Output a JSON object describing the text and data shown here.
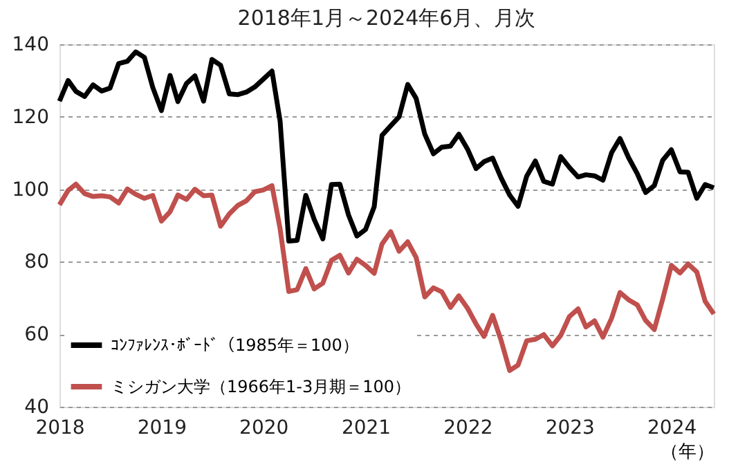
{
  "chart_data": {
    "type": "line",
    "title": "2018年1月～2024年6月、月次",
    "xlabel": "（年）",
    "x": [
      "2018-01",
      "2018-02",
      "2018-03",
      "2018-04",
      "2018-05",
      "2018-06",
      "2018-07",
      "2018-08",
      "2018-09",
      "2018-10",
      "2018-11",
      "2018-12",
      "2019-01",
      "2019-02",
      "2019-03",
      "2019-04",
      "2019-05",
      "2019-06",
      "2019-07",
      "2019-08",
      "2019-09",
      "2019-10",
      "2019-11",
      "2019-12",
      "2020-01",
      "2020-02",
      "2020-03",
      "2020-04",
      "2020-05",
      "2020-06",
      "2020-07",
      "2020-08",
      "2020-09",
      "2020-10",
      "2020-11",
      "2020-12",
      "2021-01",
      "2021-02",
      "2021-03",
      "2021-04",
      "2021-05",
      "2021-06",
      "2021-07",
      "2021-08",
      "2021-09",
      "2021-10",
      "2021-11",
      "2021-12",
      "2022-01",
      "2022-02",
      "2022-03",
      "2022-04",
      "2022-05",
      "2022-06",
      "2022-07",
      "2022-08",
      "2022-09",
      "2022-10",
      "2022-11",
      "2022-12",
      "2023-01",
      "2023-02",
      "2023-03",
      "2023-04",
      "2023-05",
      "2023-06",
      "2023-07",
      "2023-08",
      "2023-09",
      "2023-10",
      "2023-11",
      "2023-12",
      "2024-01",
      "2024-02",
      "2024-03",
      "2024-04",
      "2024-05",
      "2024-06"
    ],
    "series": [
      {
        "name": "ｺﾝﾌｧﾚﾝｽ･ﾎﾞｰﾄﾞ（1985年＝100）",
        "color": "#000000",
        "values": [
          124.3,
          130.0,
          127.0,
          125.6,
          128.8,
          127.1,
          127.9,
          134.7,
          135.3,
          137.9,
          136.4,
          128.1,
          121.7,
          131.4,
          124.2,
          129.2,
          131.3,
          124.3,
          135.8,
          134.2,
          126.3,
          126.1,
          126.8,
          128.2,
          130.4,
          132.6,
          118.8,
          85.7,
          85.9,
          98.3,
          91.7,
          86.3,
          101.3,
          101.4,
          92.9,
          87.1,
          88.9,
          95.2,
          114.9,
          117.5,
          120.0,
          128.9,
          125.1,
          115.2,
          109.8,
          111.6,
          111.9,
          115.2,
          111.1,
          105.7,
          107.6,
          108.6,
          103.2,
          98.4,
          95.3,
          103.6,
          107.8,
          102.2,
          101.4,
          109.0,
          106.0,
          103.4,
          104.0,
          103.7,
          102.5,
          110.1,
          114.0,
          108.7,
          104.3,
          99.1,
          101.0,
          108.0,
          110.9,
          104.8,
          104.7,
          97.5,
          101.3,
          100.4
        ]
      },
      {
        "name": "ミシガン大学（1966年1-3月期＝100）",
        "color": "#c0504d",
        "values": [
          95.7,
          99.7,
          101.4,
          98.8,
          98.0,
          98.2,
          97.9,
          96.2,
          100.1,
          98.6,
          97.5,
          98.3,
          91.2,
          93.8,
          98.4,
          97.2,
          100.0,
          98.2,
          98.4,
          89.8,
          93.2,
          95.5,
          96.8,
          99.3,
          99.8,
          101.0,
          89.1,
          71.8,
          72.3,
          78.1,
          72.5,
          74.1,
          80.4,
          81.8,
          76.9,
          80.7,
          79.0,
          76.8,
          84.9,
          88.3,
          82.9,
          85.5,
          81.2,
          70.3,
          72.8,
          71.7,
          67.4,
          70.6,
          67.2,
          62.8,
          59.4,
          65.2,
          58.4,
          50.0,
          51.5,
          58.2,
          58.6,
          59.9,
          56.8,
          59.7,
          64.9,
          67.0,
          62.0,
          63.7,
          59.2,
          64.4,
          71.5,
          69.5,
          68.1,
          63.8,
          61.3,
          69.7,
          79.0,
          76.9,
          79.4,
          77.2,
          69.1,
          65.6
        ]
      }
    ],
    "xlim": [
      "2018-01",
      "2024-06"
    ],
    "xticks": [
      {
        "value": "2018-01",
        "label": "2018"
      },
      {
        "value": "2019-01",
        "label": "2019"
      },
      {
        "value": "2020-01",
        "label": "2020"
      },
      {
        "value": "2021-01",
        "label": "2021"
      },
      {
        "value": "2022-01",
        "label": "2022"
      },
      {
        "value": "2023-01",
        "label": "2023"
      },
      {
        "value": "2024-01",
        "label": "2024"
      }
    ],
    "ylim": [
      40,
      140
    ],
    "yticks": [
      40,
      60,
      80,
      100,
      120,
      140
    ],
    "grid": "y",
    "legend": "bottom left",
    "marker": "none",
    "line_style": "solid"
  }
}
